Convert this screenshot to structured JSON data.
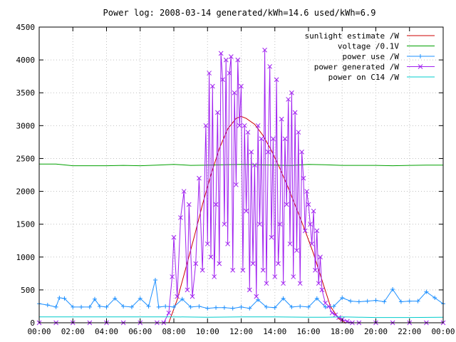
{
  "chart_data": {
    "type": "line",
    "title": "Power log: 2008-03-14 generated/kWh=14.6 used/kWh=6.9",
    "xlabel": "",
    "ylabel": "",
    "x_ticks": [
      "00:00",
      "02:00",
      "04:00",
      "06:00",
      "08:00",
      "10:00",
      "12:00",
      "14:00",
      "16:00",
      "18:00",
      "20:00",
      "22:00",
      "00:00"
    ],
    "xlim_hours": [
      0,
      24
    ],
    "ylim": [
      0,
      4500
    ],
    "y_ticks": [
      0,
      500,
      1000,
      1500,
      2000,
      2500,
      3000,
      3500,
      4000,
      4500
    ],
    "grid": true,
    "legend_position": "top-right",
    "series": [
      {
        "name": "sunlight estimate /W",
        "color": "#cc0000",
        "marker": "none",
        "x": [
          7.7,
          8.2,
          8.7,
          9.2,
          9.7,
          10.2,
          10.7,
          11.2,
          11.7,
          12.0,
          12.3,
          12.8,
          13.3,
          13.8,
          14.3,
          14.8,
          15.3,
          15.8,
          16.3,
          16.8,
          17.3,
          17.8,
          18.2
        ],
        "y": [
          0,
          350,
          820,
          1300,
          1800,
          2250,
          2650,
          2950,
          3110,
          3140,
          3110,
          3020,
          2850,
          2620,
          2350,
          2050,
          1730,
          1400,
          1050,
          650,
          250,
          60,
          0
        ]
      },
      {
        "name": "voltage /0.1V",
        "color": "#00a000",
        "marker": "none",
        "x": [
          0,
          1,
          2,
          3,
          4,
          5,
          6,
          7,
          8,
          9,
          10,
          11,
          12,
          13,
          14,
          15,
          16,
          17,
          18,
          19,
          20,
          21,
          22,
          23,
          24
        ],
        "y": [
          2415,
          2415,
          2390,
          2390,
          2390,
          2395,
          2390,
          2400,
          2410,
          2395,
          2400,
          2405,
          2410,
          2405,
          2400,
          2395,
          2410,
          2405,
          2395,
          2395,
          2395,
          2390,
          2395,
          2400,
          2400
        ]
      },
      {
        "name": "power use /W",
        "color": "#1e90ff",
        "marker": "plus",
        "x": [
          0,
          0.5,
          1.0,
          1.2,
          1.5,
          2.0,
          2.5,
          3.0,
          3.3,
          3.6,
          4.0,
          4.5,
          5.0,
          5.5,
          6.0,
          6.5,
          6.9,
          7.1,
          7.5,
          8.0,
          8.5,
          9.0,
          9.5,
          10.0,
          10.5,
          11.0,
          11.5,
          12.0,
          12.5,
          13.0,
          13.5,
          14.0,
          14.5,
          15.0,
          15.5,
          16.0,
          16.5,
          17.0,
          17.5,
          18.0,
          18.5,
          19.0,
          19.5,
          20.0,
          20.5,
          21.0,
          21.5,
          22.0,
          22.5,
          23.0,
          23.5,
          24.0
        ],
        "y": [
          290,
          270,
          240,
          380,
          370,
          240,
          240,
          240,
          360,
          250,
          240,
          370,
          250,
          240,
          370,
          250,
          650,
          240,
          250,
          240,
          360,
          240,
          250,
          220,
          230,
          230,
          220,
          240,
          220,
          350,
          240,
          230,
          370,
          240,
          250,
          240,
          370,
          240,
          250,
          380,
          330,
          320,
          330,
          340,
          320,
          510,
          320,
          330,
          330,
          470,
          380,
          290
        ]
      },
      {
        "name": "power generated /W",
        "color": "#a020f0",
        "marker": "x",
        "x": [
          0,
          1,
          2,
          3,
          4,
          5,
          6,
          7,
          7.4,
          7.7,
          7.9,
          8.0,
          8.2,
          8.4,
          8.6,
          8.8,
          8.9,
          9.1,
          9.3,
          9.5,
          9.7,
          9.9,
          10.0,
          10.1,
          10.2,
          10.3,
          10.4,
          10.5,
          10.6,
          10.7,
          10.8,
          10.9,
          11.0,
          11.1,
          11.2,
          11.3,
          11.4,
          11.5,
          11.6,
          11.7,
          11.8,
          11.9,
          12.0,
          12.1,
          12.2,
          12.3,
          12.4,
          12.5,
          12.6,
          12.7,
          12.8,
          12.9,
          13.0,
          13.1,
          13.2,
          13.3,
          13.4,
          13.5,
          13.6,
          13.7,
          13.8,
          13.9,
          14.0,
          14.1,
          14.2,
          14.3,
          14.4,
          14.5,
          14.6,
          14.7,
          14.8,
          14.9,
          15.0,
          15.1,
          15.2,
          15.3,
          15.4,
          15.5,
          15.6,
          15.7,
          15.8,
          15.9,
          16.0,
          16.1,
          16.2,
          16.3,
          16.4,
          16.5,
          16.6,
          16.7,
          16.8,
          17.0,
          17.2,
          17.4,
          17.6,
          17.8,
          18.0,
          18.3,
          18.6,
          19.0,
          20.0,
          21.0,
          22.0,
          23.0,
          24.0
        ],
        "y": [
          0,
          0,
          0,
          0,
          0,
          0,
          0,
          0,
          0,
          150,
          700,
          1300,
          400,
          1600,
          2000,
          500,
          1800,
          400,
          900,
          2200,
          800,
          3000,
          1200,
          3800,
          1000,
          3600,
          700,
          1800,
          3200,
          900,
          4100,
          3700,
          1500,
          4000,
          1200,
          3800,
          4050,
          800,
          3500,
          2100,
          4000,
          3000,
          3600,
          800,
          3000,
          1700,
          2900,
          500,
          2600,
          900,
          2400,
          400,
          3000,
          1500,
          2800,
          800,
          4150,
          600,
          2600,
          3900,
          1300,
          2800,
          700,
          3700,
          900,
          1500,
          3100,
          600,
          2800,
          1800,
          3400,
          1200,
          3500,
          700,
          3200,
          1100,
          2900,
          600,
          2600,
          2200,
          1400,
          2000,
          1800,
          1500,
          1200,
          1700,
          800,
          1400,
          600,
          1000,
          500,
          300,
          250,
          150,
          120,
          80,
          50,
          20,
          0,
          0,
          0,
          0,
          0,
          0,
          0
        ]
      },
      {
        "name": "power on C14 /W",
        "color": "#00cccc",
        "marker": "none",
        "x": [
          0,
          2,
          4,
          6,
          7,
          8,
          10,
          12,
          14,
          16,
          17,
          18,
          19,
          20,
          22,
          24
        ],
        "y": [
          90,
          90,
          90,
          90,
          90,
          90,
          85,
          90,
          90,
          85,
          85,
          90,
          85,
          80,
          80,
          85
        ]
      }
    ]
  }
}
